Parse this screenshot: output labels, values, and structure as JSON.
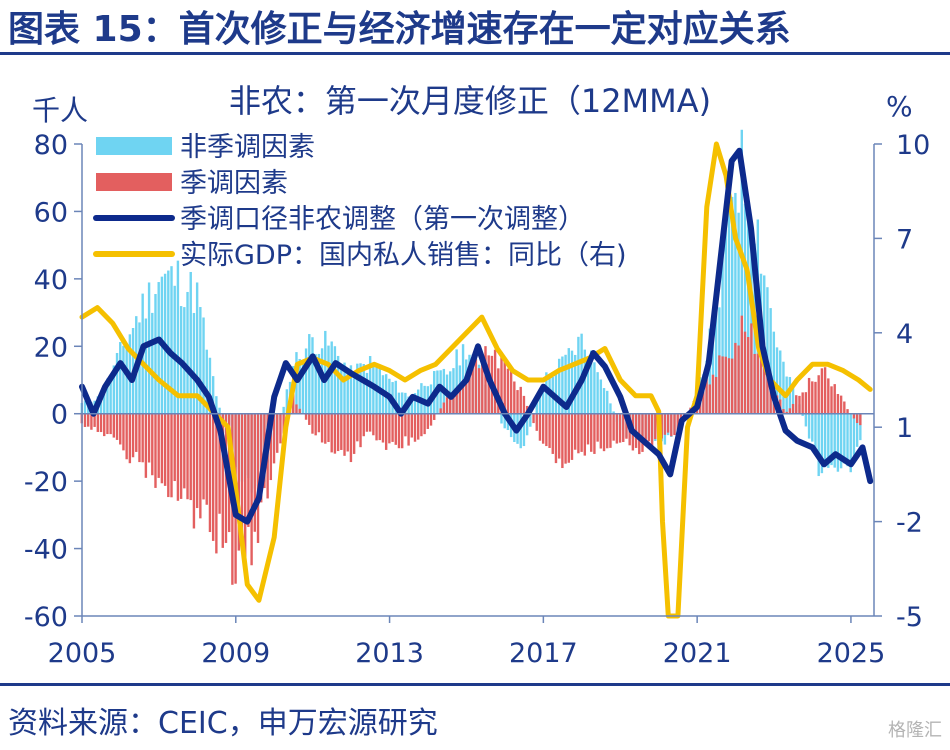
{
  "page": {
    "title": "图表 15：首次修正与经济增速存在一定对应关系",
    "source": "资料来源：CEIC，申万宏源研究",
    "watermark": "格隆汇"
  },
  "chart_data": {
    "type": "bar",
    "title": "非农：第一次月度修正（12MMA)",
    "ylabel": "千人",
    "y2label": "%",
    "ylim": [
      -60,
      80
    ],
    "y2lim": [
      -5,
      10
    ],
    "yticks": [
      "80",
      "60",
      "40",
      "20",
      "0",
      "-20",
      "-40",
      "-60"
    ],
    "y2ticks": [
      "10",
      "7",
      "4",
      "1",
      "-2",
      "-5"
    ],
    "xticks": [
      "2005",
      "2009",
      "2013",
      "2017",
      "2021",
      "2025"
    ],
    "xrange": [
      2005,
      2025.6
    ],
    "legend_position": "top-left",
    "grid": false,
    "colors": {
      "nonseasonal": "#6fd4f2",
      "seasonal": "#e35f5f",
      "revision": "#0d2a8c",
      "gdp": "#f5c000"
    },
    "series": [
      {
        "name": "非季调因素",
        "type": "bar",
        "axis": "left",
        "x": [
          2005.0,
          2005.5,
          2006.0,
          2006.5,
          2007.0,
          2007.5,
          2008.0,
          2008.5,
          2009.0,
          2009.5,
          2010.0,
          2010.5,
          2011.0,
          2011.5,
          2012.0,
          2012.5,
          2013.0,
          2013.5,
          2014.0,
          2014.5,
          2015.0,
          2015.5,
          2016.0,
          2016.5,
          2017.0,
          2017.5,
          2018.0,
          2018.5,
          2019.0,
          2019.5,
          2020.0,
          2020.5,
          2021.0,
          2021.3,
          2021.6,
          2021.9,
          2022.2,
          2022.5,
          2022.8,
          2023.0,
          2023.3,
          2023.6,
          2024.0,
          2024.3,
          2024.6,
          2025.0,
          2025.3
        ],
        "values": [
          3,
          5,
          18,
          30,
          40,
          40,
          35,
          5,
          -15,
          -25,
          -10,
          15,
          22,
          20,
          12,
          15,
          10,
          5,
          10,
          12,
          20,
          10,
          -5,
          -10,
          10,
          15,
          22,
          12,
          -5,
          -8,
          -10,
          -5,
          5,
          20,
          35,
          70,
          72,
          60,
          40,
          25,
          12,
          5,
          -10,
          -20,
          -18,
          -15,
          -5
        ]
      },
      {
        "name": "季调因素",
        "type": "bar",
        "axis": "left",
        "x": [
          2005.0,
          2005.5,
          2006.0,
          2006.5,
          2007.0,
          2007.5,
          2008.0,
          2008.5,
          2009.0,
          2009.5,
          2010.0,
          2010.5,
          2011.0,
          2011.5,
          2012.0,
          2012.5,
          2013.0,
          2013.5,
          2014.0,
          2014.5,
          2015.0,
          2015.5,
          2016.0,
          2016.5,
          2017.0,
          2017.5,
          2018.0,
          2018.5,
          2019.0,
          2019.5,
          2020.0,
          2020.5,
          2021.0,
          2021.3,
          2021.6,
          2021.9,
          2022.2,
          2022.5,
          2022.8,
          2023.0,
          2023.3,
          2023.6,
          2024.0,
          2024.3,
          2024.6,
          2025.0,
          2025.3
        ],
        "values": [
          -3,
          -5,
          -10,
          -15,
          -20,
          -25,
          -30,
          -35,
          -45,
          -40,
          -15,
          5,
          -5,
          -10,
          -12,
          -5,
          -10,
          -8,
          -5,
          5,
          10,
          18,
          15,
          5,
          -10,
          -15,
          -12,
          -10,
          -8,
          -10,
          -8,
          -5,
          5,
          10,
          15,
          20,
          25,
          22,
          15,
          8,
          0,
          5,
          10,
          12,
          8,
          0,
          -5
        ]
      },
      {
        "name": "季调口径非农调整（第一次调整）",
        "type": "line",
        "axis": "left",
        "x": [
          2005.0,
          2005.3,
          2005.6,
          2006.0,
          2006.3,
          2006.6,
          2007.0,
          2007.3,
          2007.6,
          2008.0,
          2008.3,
          2008.6,
          2009.0,
          2009.3,
          2009.6,
          2010.0,
          2010.3,
          2010.6,
          2011.0,
          2011.3,
          2011.6,
          2012.0,
          2012.3,
          2012.6,
          2013.0,
          2013.3,
          2013.6,
          2014.0,
          2014.3,
          2014.6,
          2015.0,
          2015.3,
          2015.6,
          2016.0,
          2016.3,
          2016.6,
          2017.0,
          2017.3,
          2017.6,
          2018.0,
          2018.3,
          2018.6,
          2019.0,
          2019.3,
          2019.6,
          2020.0,
          2020.3,
          2020.6,
          2021.0,
          2021.3,
          2021.6,
          2021.9,
          2022.1,
          2022.4,
          2022.7,
          2023.0,
          2023.3,
          2023.6,
          2024.0,
          2024.3,
          2024.6,
          2025.0,
          2025.3,
          2025.5
        ],
        "values": [
          8,
          0,
          8,
          15,
          10,
          20,
          22,
          18,
          15,
          10,
          5,
          -5,
          -30,
          -32,
          -25,
          5,
          15,
          10,
          17,
          10,
          15,
          12,
          10,
          8,
          5,
          0,
          5,
          3,
          8,
          5,
          10,
          20,
          10,
          0,
          -5,
          0,
          8,
          5,
          2,
          10,
          18,
          14,
          5,
          -5,
          -8,
          -12,
          -18,
          -2,
          2,
          15,
          45,
          75,
          78,
          55,
          20,
          5,
          -5,
          -8,
          -10,
          -15,
          -12,
          -15,
          -10,
          -20
        ]
      },
      {
        "name": "实际GDP：国内私人销售：同比（右)",
        "type": "line",
        "axis": "right",
        "x": [
          2005.0,
          2005.4,
          2005.8,
          2006.2,
          2006.6,
          2007.0,
          2007.5,
          2008.0,
          2008.4,
          2008.8,
          2009.0,
          2009.3,
          2009.6,
          2010.0,
          2010.3,
          2010.6,
          2011.0,
          2011.4,
          2011.8,
          2012.2,
          2012.6,
          2013.0,
          2013.4,
          2013.8,
          2014.2,
          2014.6,
          2015.0,
          2015.4,
          2015.8,
          2016.2,
          2016.6,
          2017.0,
          2017.4,
          2017.8,
          2018.2,
          2018.6,
          2019.0,
          2019.4,
          2019.8,
          2020.0,
          2020.1,
          2020.25,
          2020.5,
          2020.75,
          2021.0,
          2021.25,
          2021.5,
          2021.75,
          2022.0,
          2022.3,
          2022.6,
          2022.9,
          2023.3,
          2023.6,
          2024.0,
          2024.4,
          2024.8,
          2025.2,
          2025.5
        ],
        "values": [
          4.5,
          4.8,
          4.3,
          3.5,
          3.0,
          2.5,
          2.0,
          2.0,
          1.5,
          1.0,
          -1.0,
          -4.0,
          -4.5,
          -2.5,
          1.0,
          3.0,
          3.2,
          3.0,
          2.5,
          2.8,
          3.0,
          2.8,
          2.5,
          2.8,
          3.0,
          3.5,
          4.0,
          4.5,
          3.5,
          2.8,
          2.5,
          2.5,
          2.8,
          3.0,
          3.2,
          3.5,
          2.5,
          2.0,
          2.0,
          1.5,
          -2.0,
          -8.0,
          -5.5,
          1.0,
          2.0,
          8.0,
          12.0,
          9.0,
          7.0,
          6.0,
          3.5,
          2.5,
          2.0,
          2.5,
          3.0,
          3.0,
          2.8,
          2.5,
          2.2
        ]
      }
    ]
  }
}
